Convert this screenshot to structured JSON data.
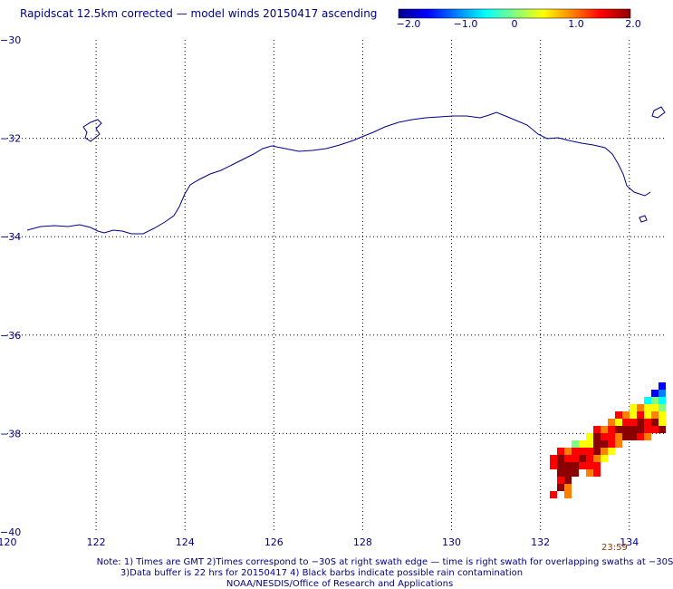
{
  "title": "Rapidscat 12.5km corrected — model winds 20150417 ascending",
  "colorbar": {
    "stops": [
      "#00008b",
      "#0000ff",
      "#0080ff",
      "#00ffff",
      "#80ff80",
      "#ffff00",
      "#ff8000",
      "#ff0000",
      "#8b0000"
    ],
    "labels": [
      "−2.0",
      "−1.0",
      "0",
      "1.0",
      "2.0"
    ],
    "range": [
      -2.0,
      2.0
    ]
  },
  "map": {
    "lon_ticks": [
      "120",
      "122",
      "124",
      "126",
      "128",
      "130",
      "132",
      "134"
    ],
    "lat_ticks": [
      "−30",
      "−32",
      "−34",
      "−36",
      "−38",
      "−40"
    ],
    "lon_range": [
      120,
      134.8
    ],
    "lat_range": [
      -40,
      -30
    ],
    "coast_color": "#00008b",
    "grid": "dotted"
  },
  "swath_time": "23:59",
  "notes": {
    "line1": "Note: 1) Times are GMT 2)Times correspond to −30S at right swath edge — time is right swath for overlapping swaths at −30S",
    "line2": "3)Data buffer is 22 hrs for 20150417 4) Black barbs indicate possible rain contamination",
    "line3": "NOAA/NESDIS/Office of Research and Applications"
  }
}
